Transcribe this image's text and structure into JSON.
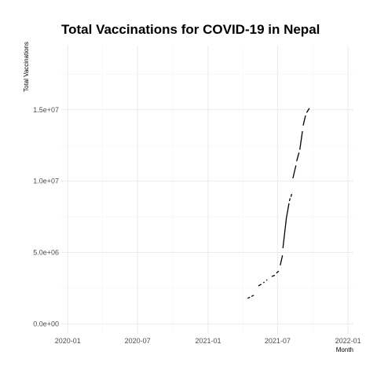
{
  "chart_data": {
    "type": "line",
    "title": "Total Vaccinations for COVID-19 in Nepal",
    "xlabel": "Month",
    "ylabel": "Total Vaccinations",
    "x_ticks": [
      "2020-01",
      "2020-07",
      "2021-01",
      "2021-07",
      "2022-01"
    ],
    "y_ticks": [
      "0.0e+00",
      "5.0e+06",
      "1.0e+07",
      "1.5e+07"
    ],
    "xlim": [
      "2019-12-15",
      "2022-01-15"
    ],
    "ylim": [
      -700000,
      19500000
    ],
    "grid": true,
    "legend": "none",
    "segments": [
      [
        [
          "2021-04-14",
          1780000
        ],
        [
          "2021-04-20",
          1870000
        ]
      ],
      [
        [
          "2021-04-24",
          1920000
        ],
        [
          "2021-04-30",
          2000000
        ]
      ],
      [
        [
          "2021-05-12",
          2650000
        ],
        [
          "2021-05-20",
          2780000
        ]
      ],
      [
        [
          "2021-05-25",
          2870000
        ],
        [
          "2021-05-28",
          2920000
        ]
      ],
      [
        [
          "2021-06-02",
          3050000
        ],
        [
          "2021-06-04",
          3100000
        ]
      ],
      [
        [
          "2021-06-16",
          3320000
        ],
        [
          "2021-06-24",
          3400000
        ]
      ],
      [
        [
          "2021-06-28",
          3550000
        ],
        [
          "2021-07-04",
          3700000
        ]
      ],
      [
        [
          "2021-07-08",
          4100000
        ],
        [
          "2021-07-14",
          4800000
        ]
      ],
      [
        [
          "2021-07-15",
          5300000
        ],
        [
          "2021-07-24",
          7400000
        ],
        [
          "2021-07-31",
          8450000
        ]
      ],
      [
        [
          "2021-08-01",
          8600000
        ],
        [
          "2021-08-03",
          8800000
        ]
      ],
      [
        [
          "2021-08-05",
          8900000
        ],
        [
          "2021-08-07",
          9100000
        ]
      ],
      [
        [
          "2021-08-10",
          10200000
        ],
        [
          "2021-08-18",
          11100000
        ]
      ],
      [
        [
          "2021-08-20",
          11400000
        ],
        [
          "2021-08-26",
          12000000
        ]
      ],
      [
        [
          "2021-08-28",
          12200000
        ],
        [
          "2021-09-04",
          13500000
        ]
      ],
      [
        [
          "2021-09-06",
          13900000
        ],
        [
          "2021-09-12",
          14600000
        ]
      ],
      [
        [
          "2021-09-15",
          14800000
        ],
        [
          "2021-09-22",
          15100000
        ]
      ]
    ]
  }
}
